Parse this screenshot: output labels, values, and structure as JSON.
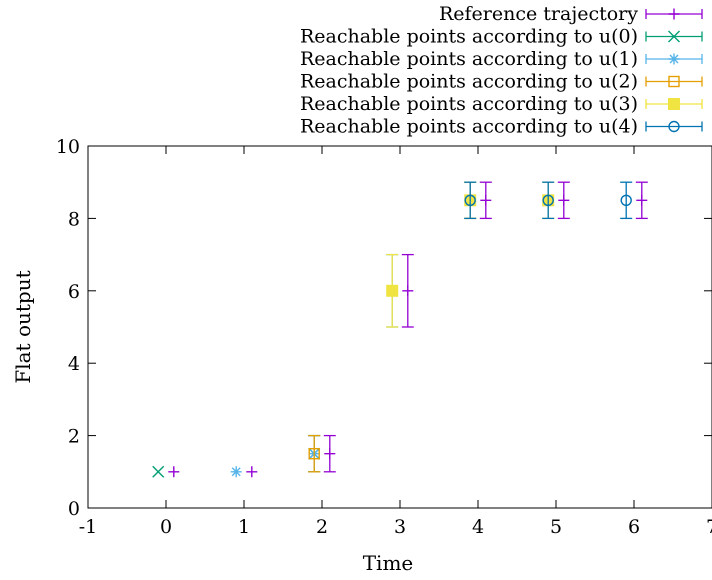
{
  "chart_data": {
    "type": "scatter",
    "title": "",
    "xlabel": "Time",
    "ylabel": "Flat output",
    "xlim": [
      -1,
      7
    ],
    "ylim": [
      0,
      10
    ],
    "x_ticks": [
      "-1",
      "0",
      "1",
      "2",
      "3",
      "4",
      "5",
      "6",
      "7"
    ],
    "y_ticks": [
      "0",
      "2",
      "4",
      "6",
      "8",
      "10"
    ],
    "grid": false,
    "legend_position": "top-right",
    "error_bars": "vertical",
    "series": [
      {
        "name": "Reference trajectory",
        "marker": "plus",
        "color": "#9400d3",
        "points": [
          {
            "x": 0.1,
            "y": 1,
            "ylow": 1,
            "yhigh": 1
          },
          {
            "x": 1.1,
            "y": 1,
            "ylow": 1,
            "yhigh": 1
          },
          {
            "x": 2.1,
            "y": 1.5,
            "ylow": 1,
            "yhigh": 2
          },
          {
            "x": 3.1,
            "y": 6,
            "ylow": 5,
            "yhigh": 7
          },
          {
            "x": 4.1,
            "y": 8.5,
            "ylow": 8,
            "yhigh": 9
          },
          {
            "x": 5.1,
            "y": 8.5,
            "ylow": 8,
            "yhigh": 9
          },
          {
            "x": 6.1,
            "y": 8.5,
            "ylow": 8,
            "yhigh": 9
          }
        ]
      },
      {
        "name": "Reachable points according to u(0)",
        "marker": "cross",
        "color": "#009e73",
        "points": [
          {
            "x": -0.1,
            "y": 1,
            "ylow": 1,
            "yhigh": 1
          },
          {
            "x": 1.9,
            "y": 1.5,
            "ylow": 1,
            "yhigh": 2
          }
        ]
      },
      {
        "name": "Reachable points according to u(1)",
        "marker": "star",
        "color": "#56b4e9",
        "points": [
          {
            "x": 0.9,
            "y": 1,
            "ylow": 1,
            "yhigh": 1
          },
          {
            "x": 1.9,
            "y": 1.5,
            "ylow": 1,
            "yhigh": 2
          },
          {
            "x": 2.9,
            "y": 6,
            "ylow": 5,
            "yhigh": 7
          }
        ]
      },
      {
        "name": "Reachable points according to u(2)",
        "marker": "open-square",
        "color": "#e69f00",
        "points": [
          {
            "x": 1.9,
            "y": 1.5,
            "ylow": 1,
            "yhigh": 2
          },
          {
            "x": 3.9,
            "y": 8.5,
            "ylow": 8,
            "yhigh": 9
          }
        ]
      },
      {
        "name": "Reachable points according to u(3)",
        "marker": "filled-square",
        "color": "#f0e442",
        "points": [
          {
            "x": 2.9,
            "y": 6,
            "ylow": 5,
            "yhigh": 7
          },
          {
            "x": 3.9,
            "y": 8.5,
            "ylow": 8,
            "yhigh": 9
          },
          {
            "x": 4.9,
            "y": 8.5,
            "ylow": 8,
            "yhigh": 9
          }
        ]
      },
      {
        "name": "Reachable points according to u(4)",
        "marker": "open-circle",
        "color": "#0072b2",
        "points": [
          {
            "x": 3.9,
            "y": 8.5,
            "ylow": 8,
            "yhigh": 9
          },
          {
            "x": 4.9,
            "y": 8.5,
            "ylow": 8,
            "yhigh": 9
          },
          {
            "x": 5.9,
            "y": 8.5,
            "ylow": 8,
            "yhigh": 9
          }
        ]
      }
    ]
  }
}
